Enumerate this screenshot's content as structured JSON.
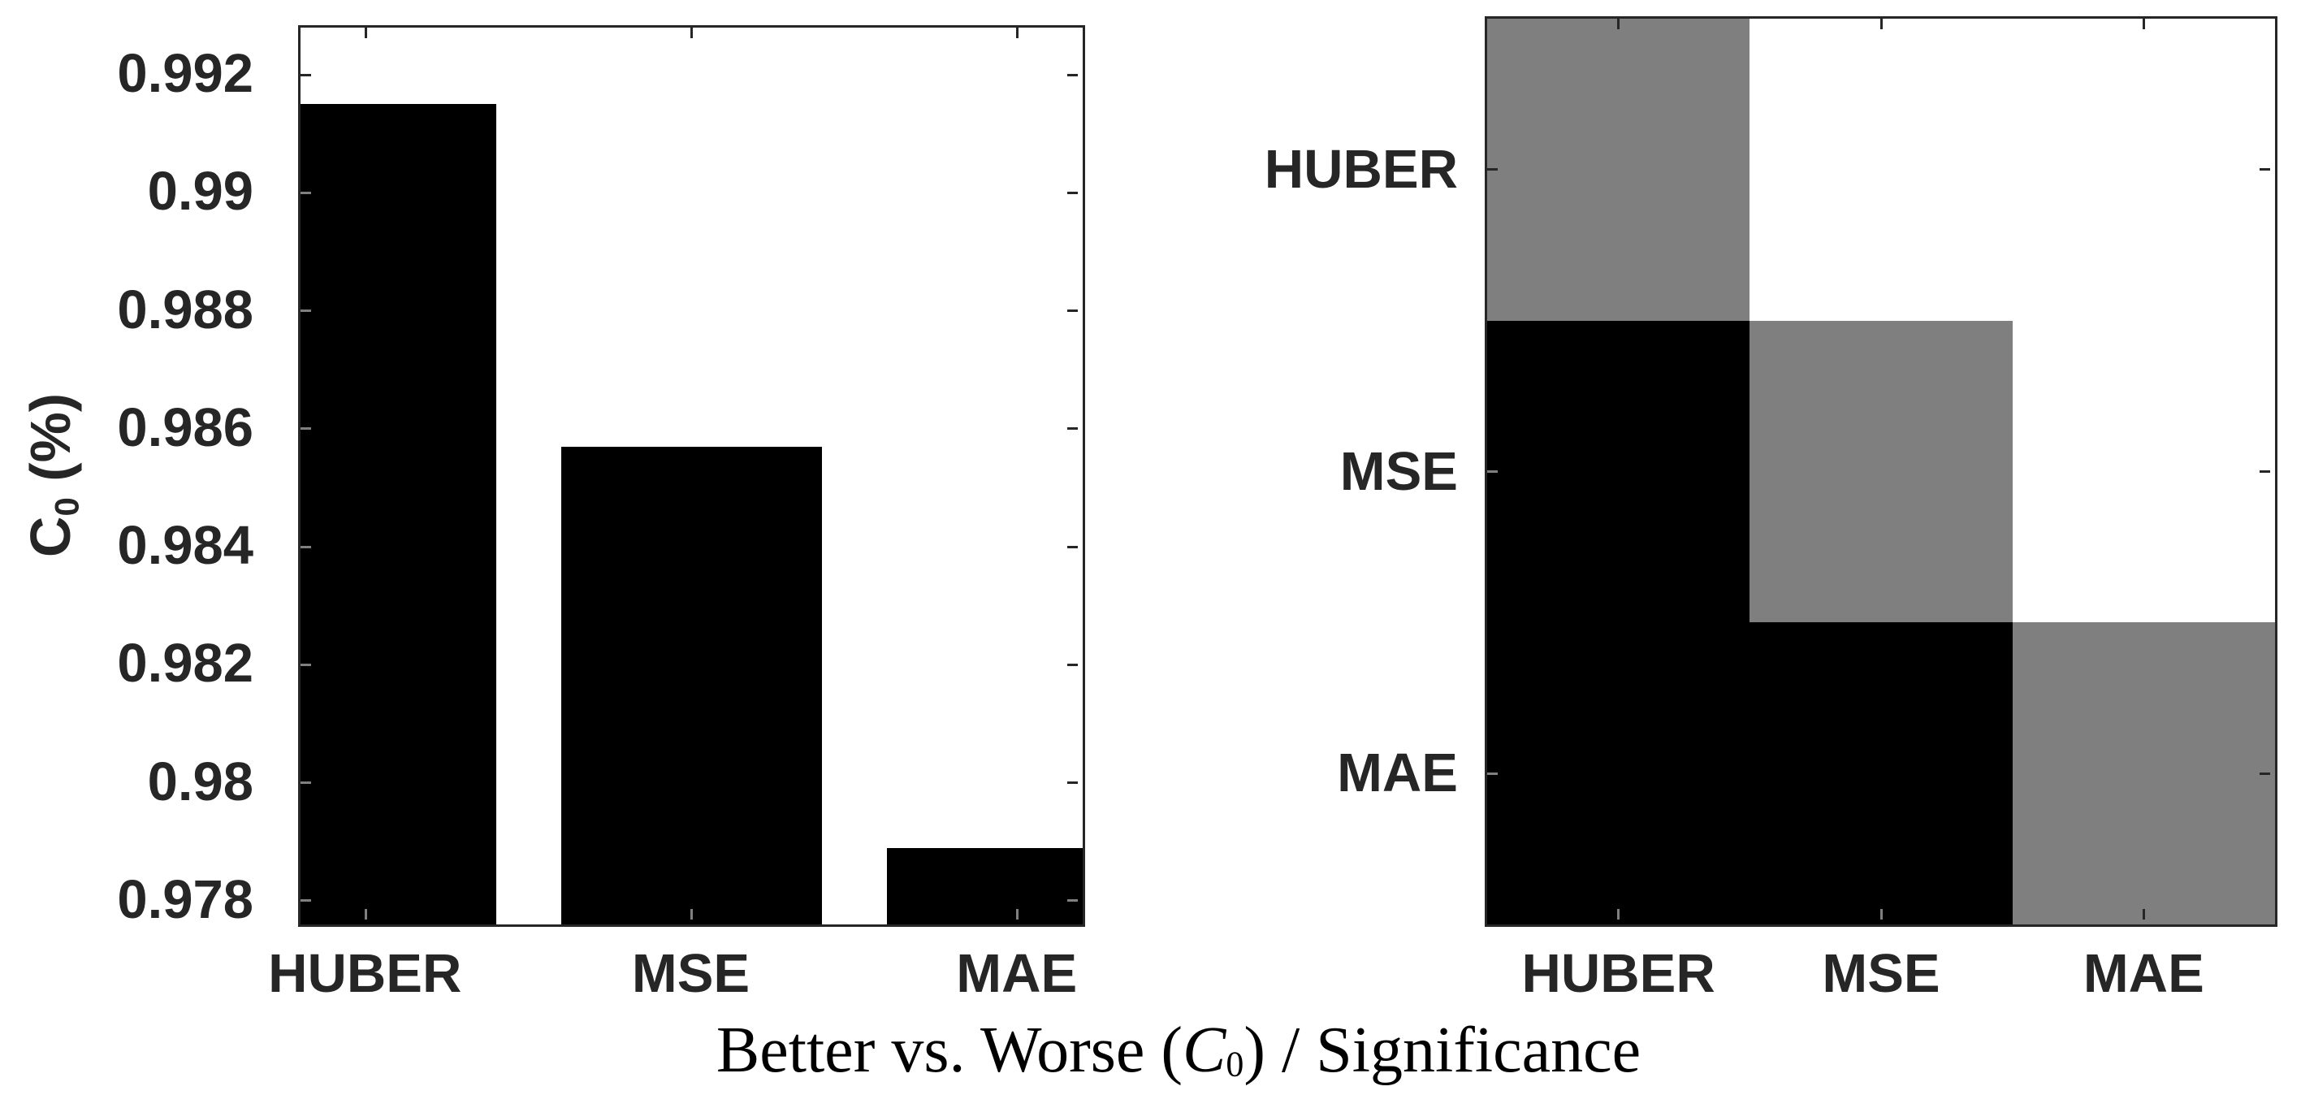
{
  "title": {
    "text_before": "Better vs. Worse (",
    "var": "C",
    "var_sub": "0",
    "text_after": ") / Significance",
    "full": "Better vs. Worse (C0) / Significance"
  },
  "colors": {
    "axis": "#262626",
    "bar": "#000000",
    "heat_gray": "#7F7F7F",
    "heat_black": "#000000",
    "heat_white": "#FFFFFF",
    "tick_on_black": "#808080",
    "background": "#FFFFFF"
  },
  "chart_data": [
    {
      "type": "bar",
      "title": "",
      "categories": [
        "HUBER",
        "MSE",
        "MAE"
      ],
      "values": [
        0.9915,
        0.9857,
        0.9789
      ],
      "xlabel": "",
      "ylabel": "C_0 (%)",
      "ylabel_parts": {
        "var": "C",
        "sub": "0",
        "rest": " (%)"
      },
      "ylim": [
        0.9776,
        0.9928
      ],
      "yticks": [
        0.992,
        0.99,
        0.988,
        0.986,
        0.984,
        0.982,
        0.98,
        0.978
      ],
      "ytick_labels": [
        "0.992",
        "0.99",
        "0.988",
        "0.986",
        "0.984",
        "0.982",
        "0.98",
        "0.978"
      ],
      "bar_color": "#000000",
      "grid": false,
      "legend": null
    },
    {
      "type": "heatmap",
      "title": "",
      "rows": [
        "HUBER",
        "MSE",
        "MAE"
      ],
      "cols": [
        "HUBER",
        "MSE",
        "MAE"
      ],
      "cell_colors": [
        [
          "#7F7F7F",
          "#FFFFFF",
          "#FFFFFF"
        ],
        [
          "#000000",
          "#7F7F7F",
          "#FFFFFF"
        ],
        [
          "#000000",
          "#000000",
          "#7F7F7F"
        ]
      ],
      "grid": false,
      "legend": null
    }
  ]
}
